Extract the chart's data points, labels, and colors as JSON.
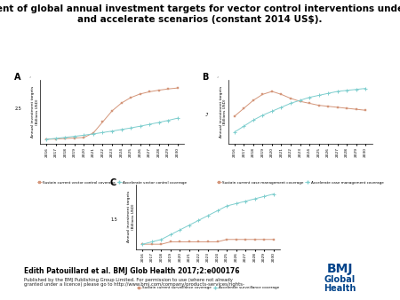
{
  "title": "(A) Per cent of global annual investment targets for vector control interventions under sustain\nand accelerate scenarios (constant 2014 US$).",
  "title_fontsize": 7.5,
  "years": [
    2016,
    2017,
    2018,
    2019,
    2020,
    2021,
    2022,
    2023,
    2024,
    2025,
    2026,
    2027,
    2028,
    2029,
    2030
  ],
  "panel_A": {
    "label": "A",
    "sustain": [
      1.0,
      1.02,
      1.05,
      1.08,
      1.12,
      1.4,
      2.1,
      2.8,
      3.3,
      3.65,
      3.88,
      4.02,
      4.12,
      4.2,
      4.26
    ],
    "accelerate": [
      1.0,
      1.06,
      1.12,
      1.19,
      1.26,
      1.34,
      1.43,
      1.52,
      1.62,
      1.72,
      1.83,
      1.95,
      2.07,
      2.2,
      2.34
    ],
    "ylabel": "Annual investment targets\n(Billions USD)",
    "ylim": [
      0.7,
      4.8
    ],
    "ytick_val": "2.5",
    "legend": [
      "Sustain current vector control coverage",
      "Accelerate vector control coverage"
    ]
  },
  "panel_B": {
    "label": "B",
    "sustain": [
      0.68,
      0.76,
      0.84,
      0.9,
      0.93,
      0.9,
      0.86,
      0.83,
      0.81,
      0.79,
      0.78,
      0.77,
      0.76,
      0.75,
      0.74
    ],
    "accelerate": [
      0.52,
      0.58,
      0.64,
      0.69,
      0.73,
      0.77,
      0.81,
      0.84,
      0.87,
      0.89,
      0.91,
      0.93,
      0.94,
      0.95,
      0.96
    ],
    "ylabel": "Annual investment targets\n(Billions USD)",
    "ylim": [
      0.4,
      1.05
    ],
    "ytick_val": "7",
    "legend": [
      "Sustain current case management coverage",
      "Accelerate case management coverage"
    ]
  },
  "panel_C": {
    "label": "C",
    "sustain": [
      0.05,
      0.05,
      0.05,
      0.06,
      0.06,
      0.06,
      0.06,
      0.06,
      0.06,
      0.07,
      0.07,
      0.07,
      0.07,
      0.07,
      0.07
    ],
    "accelerate": [
      0.05,
      0.06,
      0.07,
      0.09,
      0.11,
      0.13,
      0.15,
      0.17,
      0.19,
      0.21,
      0.22,
      0.23,
      0.24,
      0.25,
      0.26
    ],
    "ylabel": "Annual investment targets\n(Billions USD)",
    "ylim": [
      0.03,
      0.3
    ],
    "ytick_val": "1.5",
    "legend": [
      "Sustain current surveillance coverage",
      "Accelerate surveillance coverage"
    ]
  },
  "sustain_color": "#D4967A",
  "accelerate_color": "#7ECECE",
  "sustain_marker": "s",
  "accelerate_marker": "P",
  "line_width": 0.7,
  "marker_size": 2.0,
  "footer": "Edith Patouillard et al. BMJ Glob Health 2017;2:e000176",
  "footer2": "Published by the BMJ Publishing Group Limited. For permission to use (where not already\ngranted under a licence) please go to http://www.bmj.com/company/products-services/rights-"
}
